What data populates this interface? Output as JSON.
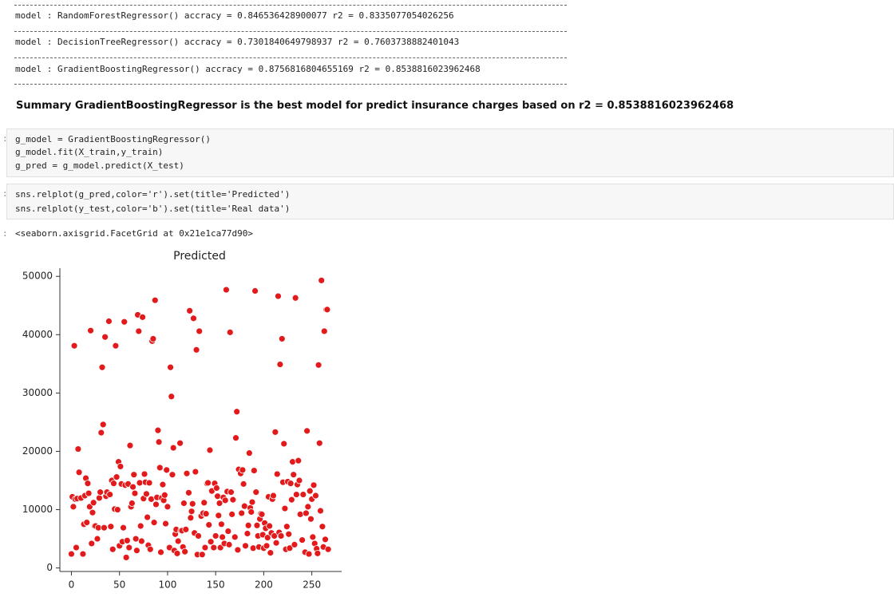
{
  "outputs": {
    "model_lines": [
      "model : RandomForestRegressor() accracy = 0.846536428900077 r2 = 0.8335077054026256",
      "model : DecisionTreeRegressor() accracy = 0.7301840649798937 r2 = 0.7603738882401043",
      "model : GradientBoostingRegressor() accracy = 0.8756816804655169 r2 = 0.8538816023962468"
    ],
    "summary": "Summary GradientBoostingRegressor is the best model for predict insurance charges based on r2 = 0.8538816023962468"
  },
  "cells": [
    {
      "prompt": ":",
      "lines": [
        "g_model = GradientBoostingRegressor()",
        "g_model.fit(X_train,y_train)",
        "g_pred = g_model.predict(X_test)"
      ]
    },
    {
      "prompt": ":",
      "lines": [
        "sns.relplot(g_pred,color='r').set(title='Predicted')",
        "sns.relplot(y_test,color='b').set(title='Real data')"
      ]
    }
  ],
  "output": {
    "prompt": ":",
    "text": "<seaborn.axisgrid.FacetGrid at 0x21e1ca77d90>"
  },
  "chart_data": {
    "type": "scatter",
    "title": "Predicted",
    "color": "#e31a1c",
    "x": [
      0,
      1,
      2,
      3,
      4,
      5,
      6,
      7,
      8,
      10,
      12,
      13,
      14,
      15,
      16,
      17,
      18,
      19,
      20,
      21,
      22,
      23,
      24,
      25,
      27,
      28,
      29,
      30,
      31,
      32,
      33,
      34,
      35,
      36,
      37,
      39,
      40,
      41,
      42,
      43,
      44,
      45,
      46,
      47,
      48,
      49,
      50,
      51,
      52,
      53,
      54,
      55,
      56,
      57,
      58,
      59,
      60,
      61,
      62,
      63,
      64,
      65,
      66,
      67,
      68,
      69,
      70,
      71,
      72,
      73,
      74,
      75,
      76,
      77,
      78,
      79,
      80,
      81,
      82,
      83,
      84,
      85,
      86,
      87,
      88,
      89,
      90,
      91,
      92,
      93,
      94,
      95,
      96,
      97,
      98,
      99,
      100,
      102,
      103,
      104,
      105,
      106,
      107,
      108,
      109,
      110,
      111,
      113,
      114,
      115,
      116,
      117,
      118,
      119,
      120,
      122,
      123,
      124,
      125,
      126,
      127,
      128,
      129,
      130,
      131,
      132,
      133,
      135,
      136,
      137,
      138,
      139,
      140,
      141,
      142,
      143,
      144,
      145,
      146,
      148,
      149,
      150,
      151,
      152,
      153,
      154,
      155,
      156,
      157,
      158,
      159,
      160,
      161,
      162,
      163,
      164,
      165,
      166,
      167,
      168,
      170,
      171,
      172,
      173,
      174,
      176,
      177,
      178,
      179,
      180,
      181,
      183,
      184,
      185,
      186,
      187,
      188,
      189,
      190,
      191,
      192,
      193,
      194,
      195,
      196,
      197,
      198,
      199,
      200,
      201,
      202,
      203,
      204,
      205,
      206,
      207,
      208,
      209,
      210,
      211,
      212,
      213,
      214,
      215,
      216,
      217,
      218,
      219,
      220,
      221,
      222,
      223,
      224,
      225,
      226,
      227,
      228,
      229,
      230,
      231,
      232,
      233,
      234,
      235,
      236,
      237,
      238,
      240,
      241,
      243,
      244,
      245,
      246,
      247,
      248,
      249,
      250,
      251,
      252,
      253,
      254,
      255,
      256,
      257,
      258,
      259,
      260,
      261,
      262,
      263,
      264,
      265,
      266,
      267
    ],
    "values": [
      2400,
      12200,
      10500,
      38100,
      11800,
      3500,
      11900,
      20400,
      16400,
      12000,
      2400,
      7500,
      12400,
      15400,
      7800,
      14500,
      12800,
      10500,
      40700,
      4200,
      9500,
      11200,
      7200,
      7200,
      5000,
      6900,
      12000,
      13000,
      23200,
      34400,
      24600,
      6900,
      39600,
      12300,
      13000,
      42300,
      12600,
      7100,
      15000,
      3200,
      14500,
      10100,
      38100,
      15600,
      10000,
      18200,
      3800,
      17400,
      14400,
      4500,
      6900,
      42200,
      14200,
      1800,
      4700,
      14400,
      3500,
      21000,
      10500,
      11100,
      13900,
      16000,
      12800,
      5000,
      3000,
      43400,
      40600,
      14600,
      7200,
      4600,
      43000,
      11900,
      16100,
      14700,
      12700,
      8700,
      3900,
      14600,
      3200,
      11800,
      38900,
      39300,
      7800,
      45900,
      10900,
      12100,
      23600,
      21600,
      17200,
      2700,
      12000,
      14300,
      11600,
      12500,
      7600,
      16800,
      10500,
      3500,
      34400,
      29400,
      16000,
      20600,
      3000,
      5800,
      6600,
      2500,
      4600,
      21400,
      6400,
      6400,
      3600,
      11100,
      2800,
      6600,
      16200,
      12900,
      44100,
      8600,
      9700,
      11000,
      42800,
      6000,
      16500,
      37400,
      2300,
      5500,
      40600,
      8900,
      2300,
      9400,
      11200,
      3500,
      9300,
      14500,
      14600,
      7400,
      20200,
      4500,
      13200,
      3500,
      14500,
      5500,
      13700,
      12300,
      9000,
      11100,
      3500,
      7500,
      5300,
      12100,
      4200,
      11600,
      47700,
      13100,
      6300,
      4000,
      40400,
      13000,
      9200,
      11700,
      5300,
      22300,
      26800,
      3100,
      16900,
      16200,
      9400,
      16800,
      14400,
      10600,
      3800,
      5900,
      7300,
      19700,
      10300,
      9600,
      11300,
      3400,
      16700,
      47500,
      13000,
      7300,
      5500,
      3600,
      8400,
      9300,
      9200,
      5700,
      3400,
      7700,
      6800,
      3800,
      5200,
      12200,
      7200,
      2600,
      6000,
      11800,
      12400,
      5500,
      23300,
      4300,
      16100,
      46600,
      6100,
      34900,
      5500,
      39300,
      14700,
      21300,
      10200,
      3200,
      7100,
      14800,
      5800,
      3400,
      14500,
      11700,
      18200,
      16000,
      4000,
      46300,
      12600,
      14300,
      18400,
      15000,
      9200,
      4800,
      12600,
      2700,
      9400,
      23500,
      10500,
      2400,
      13200,
      8400,
      11800,
      5300,
      14200,
      4200,
      12400,
      3300,
      2500,
      34800,
      21400,
      9800,
      49300,
      7100,
      3600,
      40600,
      4900,
      44300,
      44300,
      3200
    ],
    "xlim": [
      -12,
      281
    ],
    "ylim": [
      -600,
      51400
    ],
    "xticks": [
      0,
      50,
      100,
      150,
      200,
      250
    ],
    "yticks": [
      0,
      10000,
      20000,
      30000,
      40000,
      50000
    ]
  }
}
